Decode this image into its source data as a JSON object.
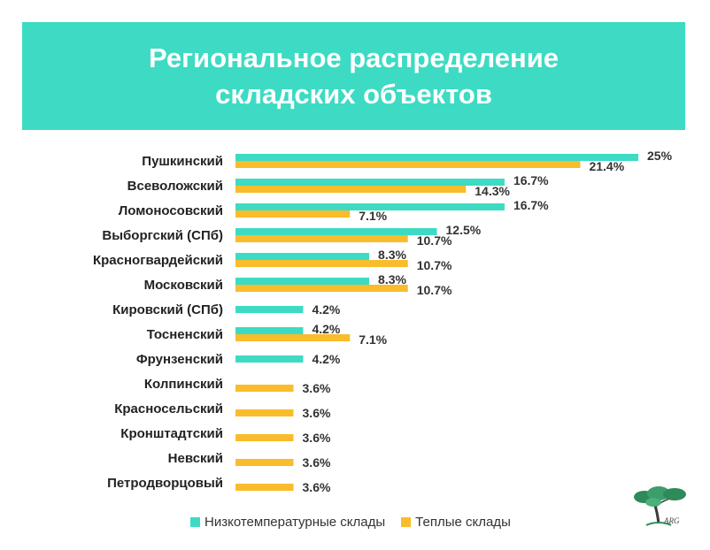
{
  "title": {
    "line1": "Региональное распределение",
    "line2": "складских объектов"
  },
  "colors": {
    "banner": "#3ddbc3",
    "teal": "#3ddbc3",
    "orange": "#f9bc2c",
    "label": "#222222"
  },
  "chart_data": {
    "type": "bar",
    "orientation": "horizontal",
    "categories": [
      "Пушкинский",
      "Всеволожский",
      "Ломоносовский",
      "Выборгский (СПб)",
      "Красногвардейский",
      "Московский",
      "Кировский (СПб)",
      "Тосненский",
      "Фрунзенский",
      "Колпинский",
      "Красносельский",
      "Кронштадтский",
      "Невский",
      "Петродворцовый"
    ],
    "series": [
      {
        "name": "Низкотемпературные склады",
        "color": "#3ddbc3",
        "values": [
          25,
          16.7,
          16.7,
          12.5,
          8.3,
          8.3,
          4.2,
          4.2,
          4.2,
          null,
          null,
          null,
          null,
          null
        ],
        "labels": [
          "25%",
          "16.7%",
          "16.7%",
          "12.5%",
          "8.3%",
          "8.3%",
          "4.2%",
          "4.2%",
          "4.2%",
          "",
          "",
          "",
          "",
          ""
        ]
      },
      {
        "name": "Теплые склады",
        "color": "#f9bc2c",
        "values": [
          21.4,
          14.3,
          7.1,
          10.7,
          10.7,
          10.7,
          null,
          7.1,
          null,
          3.6,
          3.6,
          3.6,
          3.6,
          3.6
        ],
        "labels": [
          "21.4%",
          "14.3%",
          "7.1%",
          "10.7%",
          "10.7%",
          "10.7%",
          "",
          "7.1%",
          "",
          "3.6%",
          "3.6%",
          "3.6%",
          "3.6%",
          "3.6%"
        ]
      }
    ],
    "xlim": [
      0,
      25
    ],
    "grid": false,
    "legend_position": "bottom"
  },
  "logo": {
    "text": "ARG"
  }
}
